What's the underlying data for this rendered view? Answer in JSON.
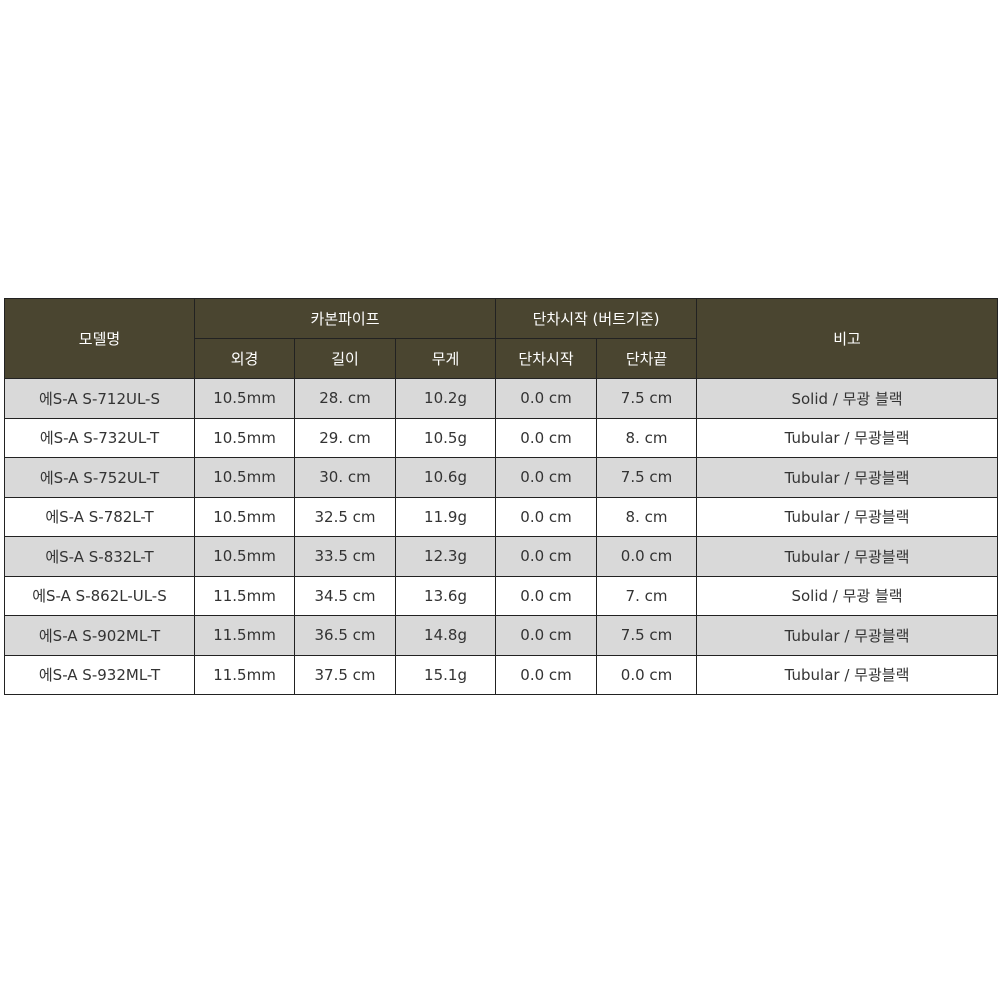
{
  "header": {
    "model": "모델명",
    "carbon_pipe": "카본파이프",
    "step_start_group": "단차시작 (버트기준)",
    "note": "비고",
    "outer_diameter": "외경",
    "length": "길이",
    "weight": "무게",
    "step_start": "단차시작",
    "step_end": "단차끝"
  },
  "rows": [
    {
      "model": "에S-A S-712UL-S",
      "od": "10.5mm",
      "length": "28. cm",
      "weight": "10.2g",
      "start": "0.0 cm",
      "end": "7.5 cm",
      "note": "Solid / 무광 블랙"
    },
    {
      "model": "에S-A S-732UL-T",
      "od": "10.5mm",
      "length": "29. cm",
      "weight": "10.5g",
      "start": "0.0 cm",
      "end": "8. cm",
      "note": "Tubular / 무광블랙"
    },
    {
      "model": "에S-A S-752UL-T",
      "od": "10.5mm",
      "length": "30. cm",
      "weight": "10.6g",
      "start": "0.0 cm",
      "end": "7.5 cm",
      "note": "Tubular / 무광블랙"
    },
    {
      "model": "에S-A S-782L-T",
      "od": "10.5mm",
      "length": "32.5 cm",
      "weight": "11.9g",
      "start": "0.0 cm",
      "end": "8. cm",
      "note": "Tubular / 무광블랙"
    },
    {
      "model": "에S-A S-832L-T",
      "od": "10.5mm",
      "length": "33.5 cm",
      "weight": "12.3g",
      "start": "0.0 cm",
      "end": "0.0 cm",
      "note": "Tubular / 무광블랙"
    },
    {
      "model": "에S-A S-862L-UL-S",
      "od": "11.5mm",
      "length": "34.5 cm",
      "weight": "13.6g",
      "start": "0.0 cm",
      "end": "7. cm",
      "note": "Solid / 무광 블랙"
    },
    {
      "model": "에S-A S-902ML-T",
      "od": "11.5mm",
      "length": "36.5 cm",
      "weight": "14.8g",
      "start": "0.0 cm",
      "end": "7.5 cm",
      "note": "Tubular / 무광블랙"
    },
    {
      "model": "에S-A S-932ML-T",
      "od": "11.5mm",
      "length": "37.5 cm",
      "weight": "15.1g",
      "start": "0.0 cm",
      "end": "0.0 cm",
      "note": "Tubular / 무광블랙"
    }
  ],
  "colors": {
    "header_bg": "#4a4530",
    "stripe": "#d9d9d9"
  }
}
